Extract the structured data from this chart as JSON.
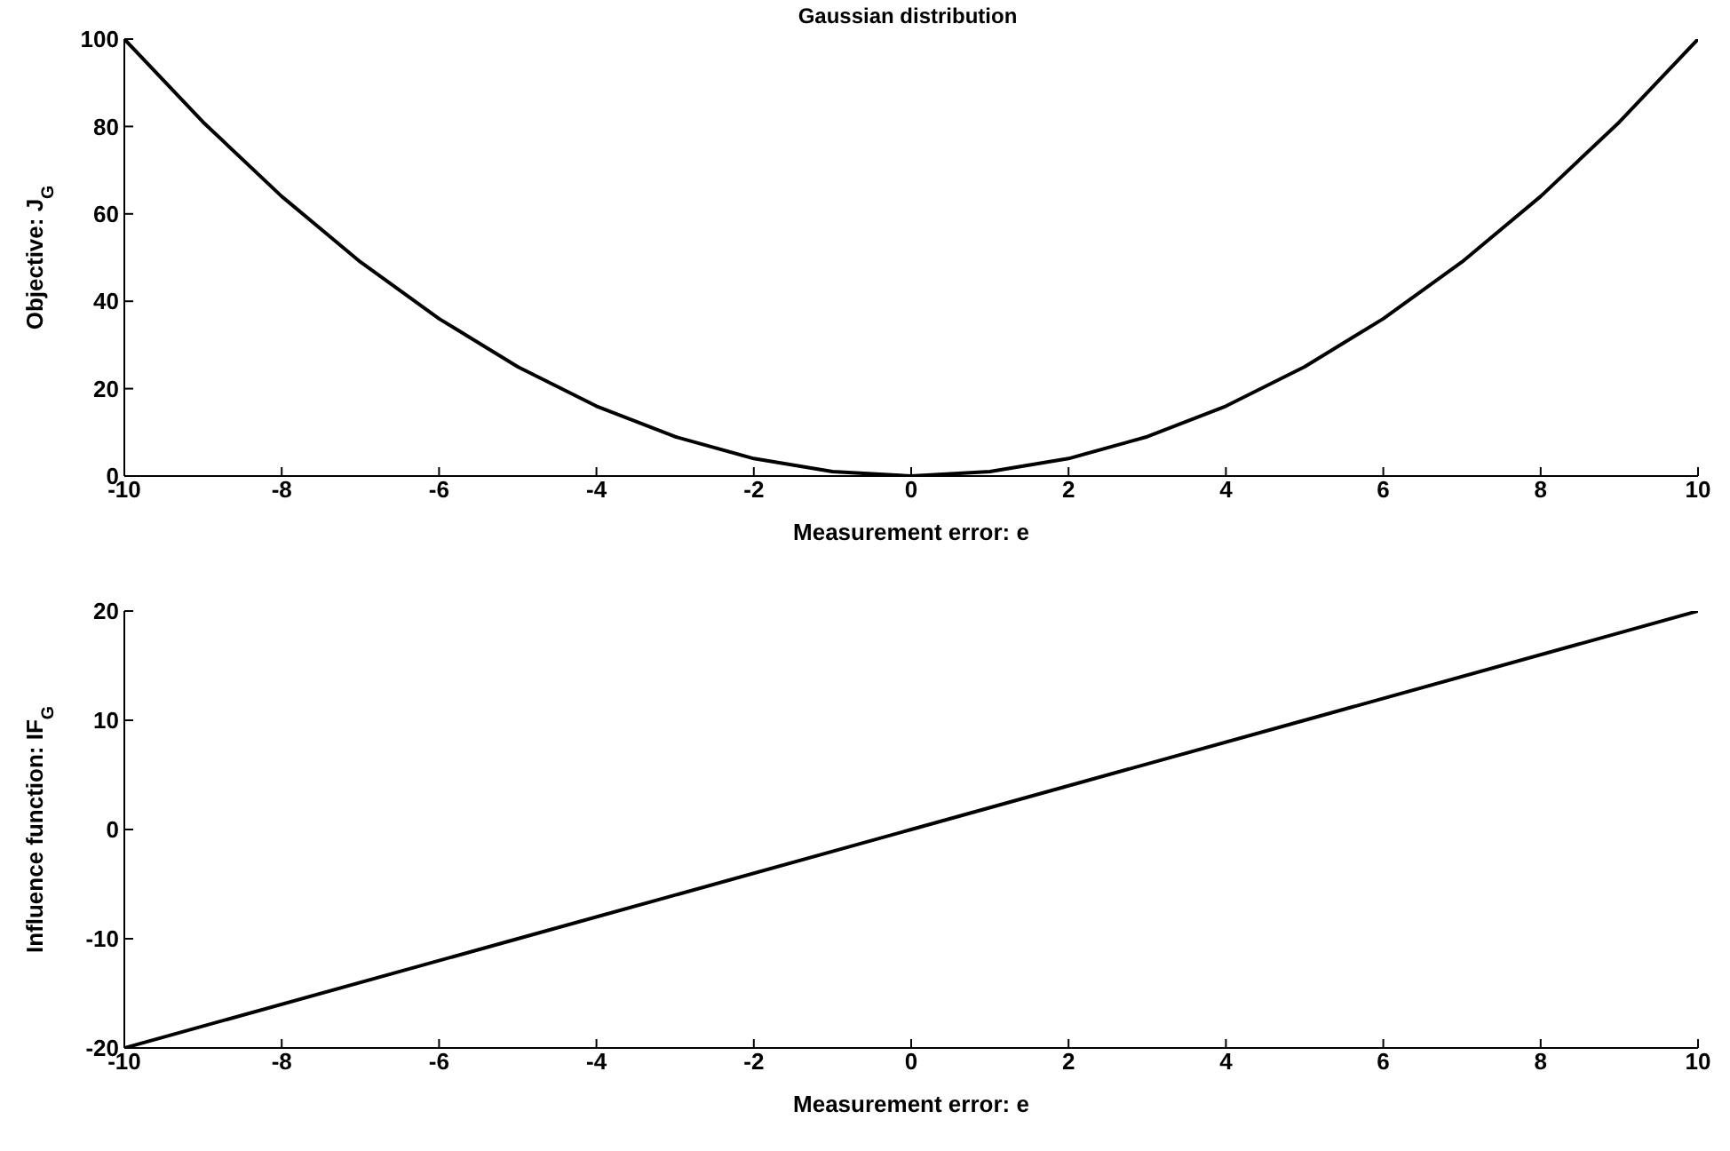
{
  "chart_data": [
    {
      "type": "line",
      "title": "Gaussian distribution",
      "xlabel": "Measurement error: e",
      "ylabel": "Objective: J$_{G}$",
      "x": [
        -10,
        -9,
        -8,
        -7,
        -6,
        -5,
        -4,
        -3,
        -2,
        -1,
        0,
        1,
        2,
        3,
        4,
        5,
        6,
        7,
        8,
        9,
        10
      ],
      "series": [
        {
          "color": "#000000",
          "values": [
            100,
            81,
            64,
            49,
            36,
            25,
            16,
            9,
            4,
            1,
            0,
            1,
            4,
            9,
            16,
            25,
            36,
            49,
            64,
            81,
            100
          ]
        }
      ],
      "xlim": [
        -10,
        10
      ],
      "xticks": [
        -10,
        -8,
        -6,
        -4,
        -2,
        0,
        2,
        4,
        6,
        8,
        10
      ],
      "ylim": [
        0,
        100
      ],
      "yticks": [
        0,
        20,
        40,
        60,
        80,
        100
      ],
      "grid": false,
      "marker": "none"
    },
    {
      "type": "line",
      "xlabel": "Measurement error: e",
      "ylabel": "Influence function: IF$_{G}$",
      "x": [
        -10,
        -5,
        0,
        5,
        10
      ],
      "series": [
        {
          "color": "#000000",
          "values": [
            -20,
            -10,
            0,
            10,
            20
          ]
        }
      ],
      "xlim": [
        -10,
        10
      ],
      "xticks": [
        -10,
        -8,
        -6,
        -4,
        -2,
        0,
        2,
        4,
        6,
        8,
        10
      ],
      "ylim": [
        -20,
        20
      ],
      "yticks": [
        -20,
        -10,
        0,
        10,
        20
      ],
      "grid": false,
      "marker": "none"
    }
  ]
}
